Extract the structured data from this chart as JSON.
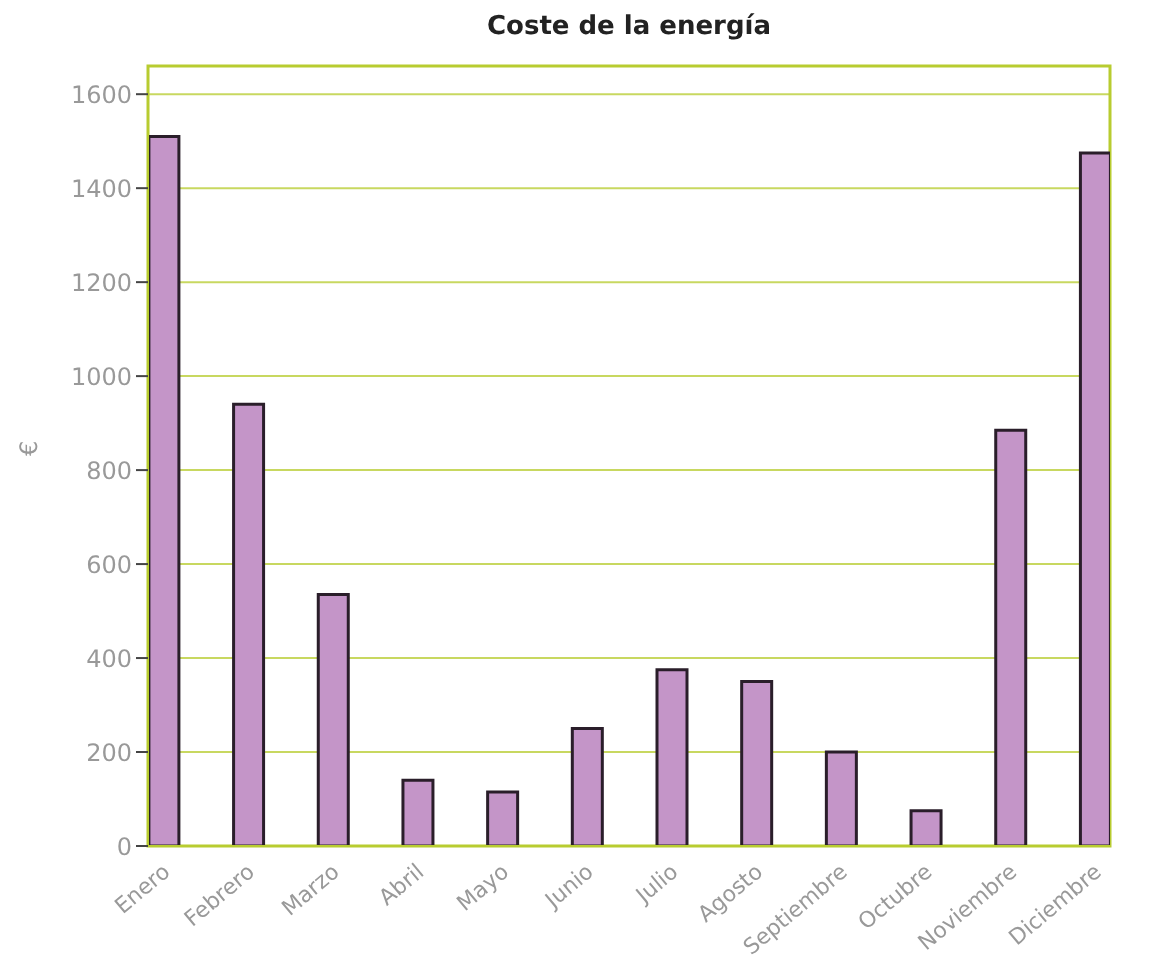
{
  "chart_data": {
    "type": "bar",
    "title": "Coste de la energía",
    "ylabel": "€",
    "categories": [
      "Enero",
      "Febrero",
      "Marzo",
      "Abril",
      "Mayo",
      "Junio",
      "Julio",
      "Agosto",
      "Septiembre",
      "Octubre",
      "Noviembre",
      "Diciembre"
    ],
    "values": [
      1510,
      940,
      535,
      140,
      115,
      250,
      375,
      350,
      200,
      75,
      885,
      1475
    ],
    "color": "#c495c8",
    "ylim": [
      0,
      1660
    ],
    "yticks": [
      0,
      200,
      400,
      600,
      800,
      1000,
      1200,
      1400,
      1600
    ],
    "grid": "y"
  }
}
